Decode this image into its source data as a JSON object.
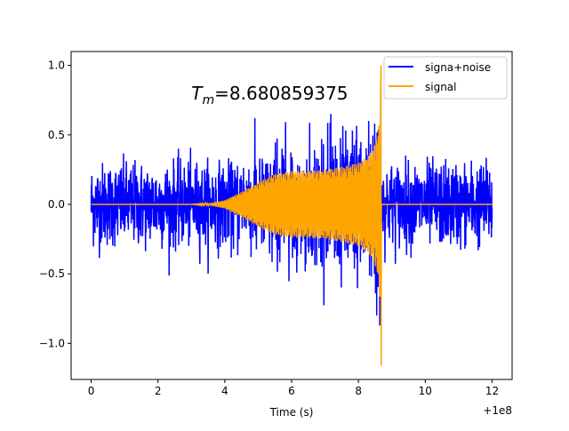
{
  "chart_data": {
    "type": "line",
    "title": "",
    "xlabel": "Time (s)",
    "ylabel": "",
    "x_offset_label": "+1e8",
    "xlim": [
      -0.6,
      12.6
    ],
    "ylim": [
      -1.26,
      1.1
    ],
    "x_ticks": [
      0,
      2,
      4,
      6,
      8,
      10,
      12
    ],
    "x_tick_labels": [
      "0",
      "2",
      "4",
      "6",
      "8",
      "10",
      "12"
    ],
    "y_ticks": [
      -1.0,
      -0.5,
      0.0,
      0.5,
      1.0
    ],
    "y_tick_labels": [
      "−1.0",
      "−0.5",
      "0.0",
      "0.5",
      "1.0"
    ],
    "annotation": {
      "symbol": "T",
      "subscript": "m",
      "text": "=8.680859375",
      "x": 3.0,
      "y": 0.8
    },
    "legend_position": "upper-right",
    "series": [
      {
        "name": "signa+noise",
        "color": "#0000ff",
        "description": "noise envelope ~0.3-0.45 amplitude spanning 0 to 12, plus signal",
        "x_range": [
          0,
          12
        ],
        "noise_amplitude": 0.35,
        "noise_peak": 0.64,
        "min_value": -0.8
      },
      {
        "name": "signal",
        "color": "#ffa500",
        "description": "chirp waveform growing from 3 to 8.68, max 1.0, min -1.16, then zero",
        "x_range": [
          0,
          12
        ],
        "merger_time": 8.680859375,
        "envelope": [
          [
            0,
            0.0
          ],
          [
            3.0,
            0.0
          ],
          [
            3.5,
            0.005
          ],
          [
            4.0,
            0.03
          ],
          [
            4.5,
            0.09
          ],
          [
            5.0,
            0.16
          ],
          [
            5.5,
            0.22
          ],
          [
            6.0,
            0.24
          ],
          [
            6.5,
            0.24
          ],
          [
            7.0,
            0.25
          ],
          [
            7.5,
            0.27
          ],
          [
            8.0,
            0.3
          ],
          [
            8.3,
            0.35
          ],
          [
            8.5,
            0.43
          ],
          [
            8.6,
            0.55
          ],
          [
            8.65,
            0.7
          ],
          [
            8.68,
            1.0
          ]
        ],
        "max_value": 1.0,
        "min_value": -1.16
      }
    ]
  }
}
